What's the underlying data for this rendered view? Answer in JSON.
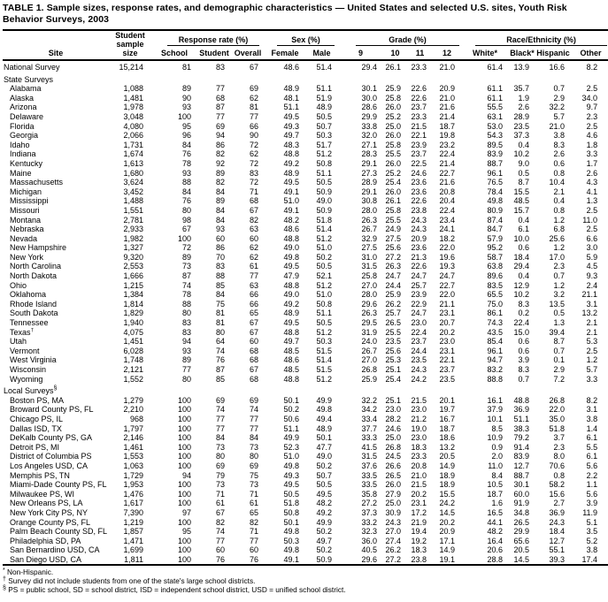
{
  "title": "TABLE 1. Sample sizes, response rates, and demographic characteristics — United States and selected U.S. sites, Youth Risk\nBehavior Surveys, 2003",
  "colors": {
    "text": "#000000",
    "background": "#ffffff",
    "rule": "#000000"
  },
  "header": {
    "site": "Site",
    "sample_size": "Student\nsample size",
    "groups": [
      {
        "label": "Response rate (%)",
        "cols": [
          "School",
          "Student",
          "Overall"
        ]
      },
      {
        "label": "Sex (%)",
        "cols": [
          "Female",
          "Male"
        ]
      },
      {
        "label": "Grade (%)",
        "cols": [
          "9",
          "10",
          "11",
          "12"
        ]
      },
      {
        "label": "Race/Ethnicity (%)",
        "cols": [
          "White*",
          "Black*",
          "Hispanic",
          "Other"
        ]
      }
    ]
  },
  "table": {
    "rows": [
      {
        "site": "National Survey",
        "indent": false,
        "values": [
          "15,214",
          "81",
          "83",
          "67",
          "48.6",
          "51.4",
          "29.4",
          "26.1",
          "23.3",
          "21.0",
          "61.4",
          "13.9",
          "16.6",
          "8.2"
        ]
      },
      {
        "section": "State Surveys"
      },
      {
        "site": "Alabama",
        "indent": true,
        "values": [
          "1,088",
          "89",
          "77",
          "69",
          "48.9",
          "51.1",
          "30.1",
          "25.9",
          "22.6",
          "20.9",
          "61.1",
          "35.7",
          "0.7",
          "2.5"
        ]
      },
      {
        "site": "Alaska",
        "indent": true,
        "values": [
          "1,481",
          "90",
          "68",
          "62",
          "48.1",
          "51.9",
          "30.0",
          "25.8",
          "22.6",
          "21.0",
          "61.1",
          "1.9",
          "2.9",
          "34.0"
        ]
      },
      {
        "site": "Arizona",
        "indent": true,
        "values": [
          "1,978",
          "93",
          "87",
          "81",
          "51.1",
          "48.9",
          "28.6",
          "26.0",
          "23.7",
          "21.6",
          "55.5",
          "2.6",
          "32.2",
          "9.7"
        ]
      },
      {
        "site": "Delaware",
        "indent": true,
        "values": [
          "3,048",
          "100",
          "77",
          "77",
          "49.5",
          "50.5",
          "29.9",
          "25.2",
          "23.3",
          "21.4",
          "63.1",
          "28.9",
          "5.7",
          "2.3"
        ]
      },
      {
        "site": "Florida",
        "indent": true,
        "values": [
          "4,080",
          "95",
          "69",
          "66",
          "49.3",
          "50.7",
          "33.8",
          "25.0",
          "21.5",
          "18.7",
          "53.0",
          "23.5",
          "21.0",
          "2.5"
        ]
      },
      {
        "site": "Georgia",
        "indent": true,
        "values": [
          "2,066",
          "96",
          "94",
          "90",
          "49.7",
          "50.3",
          "32.0",
          "26.0",
          "22.1",
          "19.8",
          "54.3",
          "37.3",
          "3.8",
          "4.6"
        ]
      },
      {
        "site": "Idaho",
        "indent": true,
        "values": [
          "1,731",
          "84",
          "86",
          "72",
          "48.3",
          "51.7",
          "27.1",
          "25.8",
          "23.9",
          "23.2",
          "89.5",
          "0.4",
          "8.3",
          "1.8"
        ]
      },
      {
        "site": "Indiana",
        "indent": true,
        "values": [
          "1,674",
          "76",
          "82",
          "62",
          "48.8",
          "51.2",
          "28.3",
          "25.5",
          "23.7",
          "22.4",
          "83.9",
          "10.2",
          "2.6",
          "3.3"
        ]
      },
      {
        "site": "Kentucky",
        "indent": true,
        "values": [
          "1,613",
          "78",
          "92",
          "72",
          "49.2",
          "50.8",
          "29.1",
          "26.0",
          "22.5",
          "21.4",
          "88.7",
          "9.0",
          "0.6",
          "1.7"
        ]
      },
      {
        "site": "Maine",
        "indent": true,
        "values": [
          "1,680",
          "93",
          "89",
          "83",
          "48.9",
          "51.1",
          "27.3",
          "25.2",
          "24.6",
          "22.7",
          "96.1",
          "0.5",
          "0.8",
          "2.6"
        ]
      },
      {
        "site": "Massachusetts",
        "indent": true,
        "values": [
          "3,624",
          "88",
          "82",
          "72",
          "49.5",
          "50.5",
          "28.9",
          "25.4",
          "23.6",
          "21.6",
          "76.5",
          "8.7",
          "10.4",
          "4.3"
        ]
      },
      {
        "site": "Michigan",
        "indent": true,
        "values": [
          "3,452",
          "84",
          "84",
          "71",
          "49.1",
          "50.9",
          "29.1",
          "26.0",
          "23.6",
          "20.8",
          "78.4",
          "15.5",
          "2.1",
          "4.1"
        ]
      },
      {
        "site": "Mississippi",
        "indent": true,
        "values": [
          "1,488",
          "76",
          "89",
          "68",
          "51.0",
          "49.0",
          "30.8",
          "26.1",
          "22.6",
          "20.4",
          "49.8",
          "48.5",
          "0.4",
          "1.3"
        ]
      },
      {
        "site": "Missouri",
        "indent": true,
        "values": [
          "1,551",
          "80",
          "84",
          "67",
          "49.1",
          "50.9",
          "28.0",
          "25.8",
          "23.8",
          "22.4",
          "80.9",
          "15.7",
          "0.8",
          "2.5"
        ]
      },
      {
        "site": "Montana",
        "indent": true,
        "values": [
          "2,781",
          "98",
          "84",
          "82",
          "48.2",
          "51.8",
          "26.3",
          "25.5",
          "24.3",
          "23.4",
          "87.4",
          "0.4",
          "1.2",
          "11.0"
        ]
      },
      {
        "site": "Nebraska",
        "indent": true,
        "values": [
          "2,933",
          "67",
          "93",
          "63",
          "48.6",
          "51.4",
          "26.7",
          "24.9",
          "24.3",
          "24.1",
          "84.7",
          "6.1",
          "6.8",
          "2.5"
        ]
      },
      {
        "site": "Nevada",
        "indent": true,
        "values": [
          "1,982",
          "100",
          "60",
          "60",
          "48.8",
          "51.2",
          "32.9",
          "27.5",
          "20.9",
          "18.2",
          "57.9",
          "10.0",
          "25.6",
          "6.6"
        ]
      },
      {
        "site": "New Hampshire",
        "indent": true,
        "values": [
          "1,327",
          "72",
          "86",
          "62",
          "49.0",
          "51.0",
          "27.5",
          "25.6",
          "23.6",
          "22.0",
          "95.2",
          "0.6",
          "1.2",
          "3.0"
        ]
      },
      {
        "site": "New York",
        "indent": true,
        "values": [
          "9,320",
          "89",
          "70",
          "62",
          "49.8",
          "50.2",
          "31.0",
          "27.2",
          "21.3",
          "19.6",
          "58.7",
          "18.4",
          "17.0",
          "5.9"
        ]
      },
      {
        "site": "North Carolina",
        "indent": true,
        "values": [
          "2,553",
          "73",
          "83",
          "61",
          "49.5",
          "50.5",
          "31.5",
          "26.3",
          "22.6",
          "19.3",
          "63.8",
          "29.4",
          "2.3",
          "4.5"
        ]
      },
      {
        "site": "North Dakota",
        "indent": true,
        "values": [
          "1,666",
          "87",
          "88",
          "77",
          "47.9",
          "52.1",
          "25.8",
          "24.7",
          "24.7",
          "24.7",
          "89.6",
          "0.4",
          "0.7",
          "9.3"
        ]
      },
      {
        "site": "Ohio",
        "indent": true,
        "values": [
          "1,215",
          "74",
          "85",
          "63",
          "48.8",
          "51.2",
          "27.0",
          "24.4",
          "25.7",
          "22.7",
          "83.5",
          "12.9",
          "1.2",
          "2.4"
        ]
      },
      {
        "site": "Oklahoma",
        "indent": true,
        "values": [
          "1,384",
          "78",
          "84",
          "66",
          "49.0",
          "51.0",
          "28.0",
          "25.9",
          "23.9",
          "22.0",
          "65.5",
          "10.2",
          "3.2",
          "21.1"
        ]
      },
      {
        "site": "Rhode Island",
        "indent": true,
        "values": [
          "1,814",
          "88",
          "75",
          "66",
          "49.2",
          "50.8",
          "29.6",
          "26.2",
          "22.9",
          "21.1",
          "75.0",
          "8.3",
          "13.5",
          "3.1"
        ]
      },
      {
        "site": "South Dakota",
        "indent": true,
        "values": [
          "1,829",
          "80",
          "81",
          "65",
          "48.9",
          "51.1",
          "26.3",
          "25.7",
          "24.7",
          "23.1",
          "86.1",
          "0.2",
          "0.5",
          "13.2"
        ]
      },
      {
        "site": "Tennessee",
        "indent": true,
        "values": [
          "1,940",
          "83",
          "81",
          "67",
          "49.5",
          "50.5",
          "29.5",
          "26.5",
          "23.0",
          "20.7",
          "74.3",
          "22.4",
          "1.3",
          "2.1"
        ]
      },
      {
        "site": "Texas",
        "sup": "†",
        "indent": true,
        "values": [
          "4,075",
          "83",
          "80",
          "67",
          "48.8",
          "51.2",
          "31.9",
          "25.5",
          "22.4",
          "20.2",
          "43.5",
          "15.0",
          "39.4",
          "2.1"
        ]
      },
      {
        "site": "Utah",
        "indent": true,
        "values": [
          "1,451",
          "94",
          "64",
          "60",
          "49.7",
          "50.3",
          "24.0",
          "23.5",
          "23.7",
          "23.0",
          "85.4",
          "0.6",
          "8.7",
          "5.3"
        ]
      },
      {
        "site": "Vermont",
        "indent": true,
        "values": [
          "6,028",
          "93",
          "74",
          "68",
          "48.5",
          "51.5",
          "26.7",
          "25.6",
          "24.4",
          "23.1",
          "96.1",
          "0.6",
          "0.7",
          "2.5"
        ]
      },
      {
        "site": "West Virginia",
        "indent": true,
        "values": [
          "1,748",
          "89",
          "76",
          "68",
          "48.6",
          "51.4",
          "27.0",
          "25.3",
          "23.5",
          "22.1",
          "94.7",
          "3.9",
          "0.1",
          "1.2"
        ]
      },
      {
        "site": "Wisconsin",
        "indent": true,
        "values": [
          "2,121",
          "77",
          "87",
          "67",
          "48.5",
          "51.5",
          "26.8",
          "25.1",
          "24.3",
          "23.7",
          "83.2",
          "8.3",
          "2.9",
          "5.7"
        ]
      },
      {
        "site": "Wyoming",
        "indent": true,
        "values": [
          "1,552",
          "80",
          "85",
          "68",
          "48.8",
          "51.2",
          "25.9",
          "25.4",
          "24.2",
          "23.5",
          "88.8",
          "0.7",
          "7.2",
          "3.3"
        ]
      },
      {
        "section": "Local Surveys",
        "sup": "§"
      },
      {
        "site": "Boston PS, MA",
        "indent": true,
        "values": [
          "1,279",
          "100",
          "69",
          "69",
          "50.1",
          "49.9",
          "32.2",
          "25.1",
          "21.5",
          "20.1",
          "16.1",
          "48.8",
          "26.8",
          "8.2"
        ]
      },
      {
        "site": "Broward County PS, FL",
        "indent": true,
        "values": [
          "2,210",
          "100",
          "74",
          "74",
          "50.2",
          "49.8",
          "34.2",
          "23.0",
          "23.0",
          "19.7",
          "37.9",
          "36.9",
          "22.0",
          "3.1"
        ]
      },
      {
        "site": "Chicago PS, IL",
        "indent": true,
        "values": [
          "968",
          "100",
          "77",
          "77",
          "50.6",
          "49.4",
          "33.4",
          "28.2",
          "21.2",
          "16.7",
          "10.1",
          "51.1",
          "35.0",
          "3.8"
        ]
      },
      {
        "site": "Dallas ISD, TX",
        "indent": true,
        "values": [
          "1,797",
          "100",
          "77",
          "77",
          "51.1",
          "48.9",
          "37.7",
          "24.6",
          "19.0",
          "18.7",
          "8.5",
          "38.3",
          "51.8",
          "1.4"
        ]
      },
      {
        "site": "DeKalb County PS, GA",
        "indent": true,
        "values": [
          "2,146",
          "100",
          "84",
          "84",
          "49.9",
          "50.1",
          "33.3",
          "25.0",
          "23.0",
          "18.6",
          "10.9",
          "79.2",
          "3.7",
          "6.1"
        ]
      },
      {
        "site": "Detroit PS, MI",
        "indent": true,
        "values": [
          "1,461",
          "100",
          "73",
          "73",
          "52.3",
          "47.7",
          "41.5",
          "26.8",
          "18.3",
          "13.2",
          "0.9",
          "91.4",
          "2.3",
          "5.5"
        ]
      },
      {
        "site": "District of Columbia PS",
        "indent": true,
        "values": [
          "1,553",
          "100",
          "80",
          "80",
          "51.0",
          "49.0",
          "31.5",
          "24.5",
          "23.3",
          "20.5",
          "2.0",
          "83.9",
          "8.0",
          "6.1"
        ]
      },
      {
        "site": "Los Angeles USD, CA",
        "indent": true,
        "values": [
          "1,063",
          "100",
          "69",
          "69",
          "49.8",
          "50.2",
          "37.6",
          "26.6",
          "20.8",
          "14.9",
          "11.0",
          "12.7",
          "70.6",
          "5.6"
        ]
      },
      {
        "site": "Memphis PS, TN",
        "indent": true,
        "values": [
          "1,729",
          "94",
          "79",
          "75",
          "49.3",
          "50.7",
          "33.5",
          "26.5",
          "21.0",
          "18.9",
          "8.4",
          "88.7",
          "0.8",
          "2.2"
        ]
      },
      {
        "site": "Miami-Dade County PS, FL",
        "indent": true,
        "values": [
          "1,953",
          "100",
          "73",
          "73",
          "49.5",
          "50.5",
          "33.5",
          "26.0",
          "21.5",
          "18.9",
          "10.5",
          "30.1",
          "58.2",
          "1.1"
        ]
      },
      {
        "site": "Milwaukee PS, WI",
        "indent": true,
        "values": [
          "1,476",
          "100",
          "71",
          "71",
          "50.5",
          "49.5",
          "35.8",
          "27.9",
          "20.2",
          "15.5",
          "18.7",
          "60.0",
          "15.6",
          "5.6"
        ]
      },
      {
        "site": "New Orleans PS, LA",
        "indent": true,
        "values": [
          "1,617",
          "100",
          "61",
          "61",
          "51.8",
          "48.2",
          "27.2",
          "25.0",
          "23.1",
          "24.2",
          "1.6",
          "91.9",
          "2.7",
          "3.9"
        ]
      },
      {
        "site": "New York City PS, NY",
        "indent": true,
        "values": [
          "7,390",
          "97",
          "67",
          "65",
          "50.8",
          "49.2",
          "37.3",
          "30.9",
          "17.2",
          "14.5",
          "16.5",
          "34.8",
          "36.9",
          "11.9"
        ]
      },
      {
        "site": "Orange County PS, FL",
        "indent": true,
        "values": [
          "1,219",
          "100",
          "82",
          "82",
          "50.1",
          "49.9",
          "33.2",
          "24.3",
          "21.9",
          "20.2",
          "44.1",
          "26.5",
          "24.3",
          "5.1"
        ]
      },
      {
        "site": "Palm Beach County SD, FL",
        "indent": true,
        "values": [
          "1,857",
          "95",
          "74",
          "71",
          "49.8",
          "50.2",
          "32.3",
          "27.0",
          "19.4",
          "20.9",
          "48.2",
          "29.9",
          "18.4",
          "3.5"
        ]
      },
      {
        "site": "Philadelphia SD, PA",
        "indent": true,
        "values": [
          "1,471",
          "100",
          "77",
          "77",
          "50.3",
          "49.7",
          "36.0",
          "27.4",
          "19.2",
          "17.1",
          "16.4",
          "65.6",
          "12.7",
          "5.2"
        ]
      },
      {
        "site": "San Bernardino USD, CA",
        "indent": true,
        "values": [
          "1,699",
          "100",
          "60",
          "60",
          "49.8",
          "50.2",
          "40.5",
          "26.2",
          "18.3",
          "14.9",
          "20.6",
          "20.5",
          "55.1",
          "3.8"
        ]
      },
      {
        "site": "San Diego USD, CA",
        "indent": true,
        "values": [
          "1,811",
          "100",
          "76",
          "76",
          "49.1",
          "50.9",
          "29.6",
          "27.2",
          "23.8",
          "19.1",
          "28.8",
          "14.5",
          "39.3",
          "17.4"
        ]
      }
    ]
  },
  "footnotes": [
    {
      "sup": "*",
      "text": " Non-Hispanic."
    },
    {
      "sup": "†",
      "text": " Survey did not include students from one of the state's large school districts."
    },
    {
      "sup": "§",
      "text": " PS = public school, SD = school district, ISD = independent school district, USD = unified school district."
    }
  ]
}
